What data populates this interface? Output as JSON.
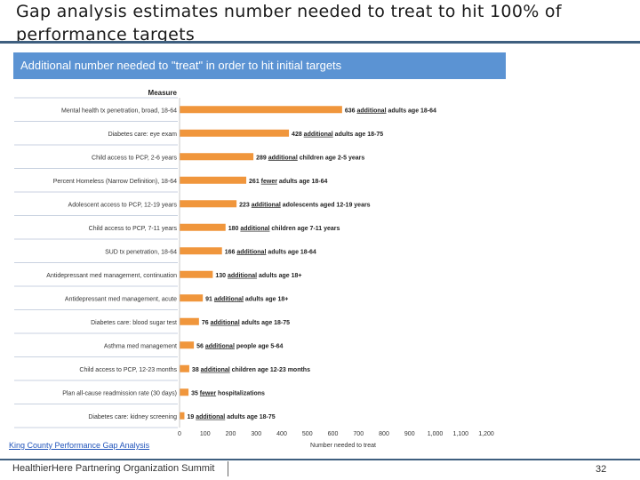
{
  "slide": {
    "title": "Gap analysis estimates number needed to treat to hit 100% of performance targets",
    "source": "King County Performance Gap Analysis",
    "footer": "HealthierHere Partnering Organization Summit",
    "page_number": "32"
  },
  "colors": {
    "bar": "#f0963c",
    "banner": "#5b93d3",
    "accent_rule": "#3f5f7f",
    "row_divider": "#c9d2e0"
  },
  "chart_data": {
    "type": "bar",
    "orientation": "horizontal",
    "title": "Additional number needed to \"treat\" in order to hit initial targets",
    "category_header": "Measure",
    "xlabel": "Number needed to treat",
    "xlim": [
      0,
      1200
    ],
    "xticks": [
      {
        "value": 0,
        "label": "0"
      },
      {
        "value": 100,
        "label": "100"
      },
      {
        "value": 200,
        "label": "200"
      },
      {
        "value": 300,
        "label": "300"
      },
      {
        "value": 400,
        "label": "400"
      },
      {
        "value": 500,
        "label": "500"
      },
      {
        "value": 600,
        "label": "600"
      },
      {
        "value": 700,
        "label": "700"
      },
      {
        "value": 800,
        "label": "800"
      },
      {
        "value": 900,
        "label": "900"
      },
      {
        "value": 1000,
        "label": "1,000"
      },
      {
        "value": 1100,
        "label": "1,100"
      },
      {
        "value": 1200,
        "label": "1,200"
      }
    ],
    "grid": false,
    "legend": "none",
    "bars": [
      {
        "measure": "Mental health tx penetration, broad, 18-64",
        "value": 636,
        "label_num": "636",
        "label_word": "additional",
        "label_rest": "adults age 18-64"
      },
      {
        "measure": "Diabetes care: eye exam",
        "value": 428,
        "label_num": "428",
        "label_word": "additional",
        "label_rest": "adults age 18-75"
      },
      {
        "measure": "Child access to PCP, 2-6 years",
        "value": 289,
        "label_num": "289",
        "label_word": "additional",
        "label_rest": "children age 2-5 years"
      },
      {
        "measure": "Percent Homeless (Narrow Definition), 18-64",
        "value": 261,
        "label_num": "261",
        "label_word": "fewer",
        "label_rest": "adults age 18-64"
      },
      {
        "measure": "Adolescent access to PCP, 12-19 years",
        "value": 223,
        "label_num": "223",
        "label_word": "additional",
        "label_rest": "adolescents aged 12-19 years"
      },
      {
        "measure": "Child access to PCP, 7-11 years",
        "value": 180,
        "label_num": "180",
        "label_word": "additional",
        "label_rest": "children age 7-11 years"
      },
      {
        "measure": "SUD tx penetration, 18-64",
        "value": 166,
        "label_num": "166",
        "label_word": "additional",
        "label_rest": "adults age 18-64"
      },
      {
        "measure": "Antidepressant med management, continuation",
        "value": 130,
        "label_num": "130",
        "label_word": "additional",
        "label_rest": "adults age 18+"
      },
      {
        "measure": "Antidepressant med management, acute",
        "value": 91,
        "label_num": "91",
        "label_word": "additional",
        "label_rest": "adults age 18+"
      },
      {
        "measure": "Diabetes care: blood sugar test",
        "value": 76,
        "label_num": "76",
        "label_word": "additional",
        "label_rest": "adults age 18-75"
      },
      {
        "measure": "Asthma med management",
        "value": 56,
        "label_num": "56",
        "label_word": "additional",
        "label_rest": "people age 5-64"
      },
      {
        "measure": "Child access to PCP, 12-23 months",
        "value": 38,
        "label_num": "38",
        "label_word": "additional",
        "label_rest": "children age 12-23 months"
      },
      {
        "measure": "Plan all-cause readmission rate (30 days)",
        "value": 35,
        "label_num": "35",
        "label_word": "fewer",
        "label_rest": "hospitalizations"
      },
      {
        "measure": "Diabetes care: kidney screening",
        "value": 19,
        "label_num": "19",
        "label_word": "additional",
        "label_rest": "adults age 18-75"
      }
    ]
  }
}
